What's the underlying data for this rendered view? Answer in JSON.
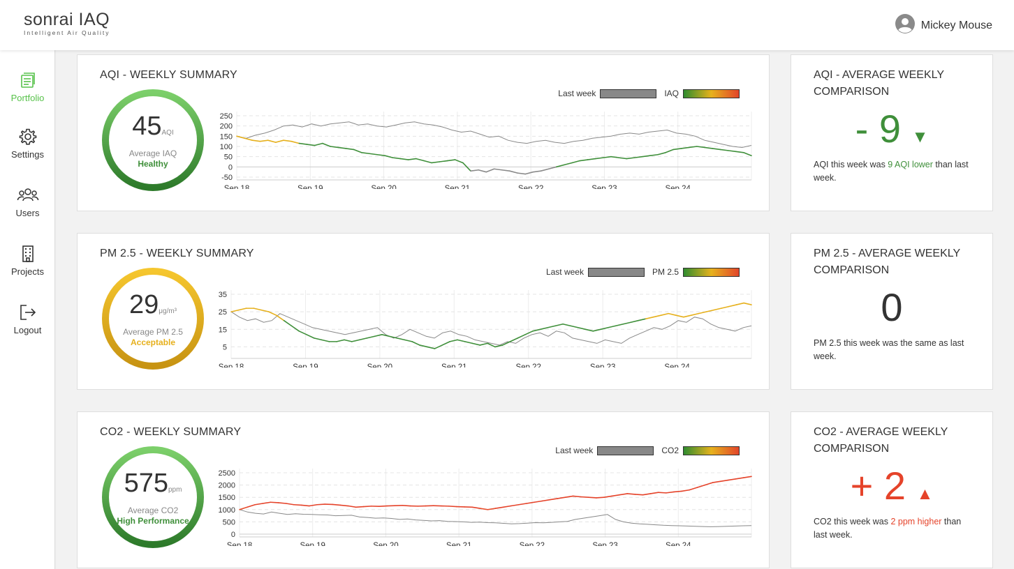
{
  "app": {
    "logo_name": "sonrai",
    "logo_product": "IAQ",
    "logo_tagline": "Intelligent Air Quality"
  },
  "user": {
    "name": "Mickey Mouse",
    "icon": "user-avatar-icon"
  },
  "sidebar": {
    "items": [
      {
        "label": "Portfolio",
        "icon": "portfolio-icon",
        "active": true
      },
      {
        "label": "Settings",
        "icon": "gear-icon"
      },
      {
        "label": "Users",
        "icon": "users-icon"
      },
      {
        "label": "Projects",
        "icon": "building-icon"
      },
      {
        "label": "Logout",
        "icon": "logout-icon"
      }
    ]
  },
  "colors": {
    "green": "#3f8f3a",
    "yellow": "#e6b01c",
    "red": "#e5432a",
    "accent": "#57c24a",
    "grey": "#888888"
  },
  "aqi": {
    "title": "AQI - WEEKLY SUMMARY",
    "gauge": {
      "value": "45",
      "unit": "AQI",
      "label": "Average IAQ",
      "status": "Healthy"
    },
    "legend": {
      "last_week": "Last week",
      "current": "IAQ"
    },
    "comparison": {
      "title": "AQI - AVERAGE WEEKLY COMPARISON",
      "value": "- 9",
      "arrow": "▼",
      "desc_pre": "AQI this week was ",
      "desc_hl": "9 AQI lower",
      "desc_post": " than last week."
    }
  },
  "pm25": {
    "title": "PM 2.5 - WEEKLY SUMMARY",
    "gauge": {
      "value": "29",
      "unit": "μg/m³",
      "label": "Average PM 2.5",
      "status": "Acceptable"
    },
    "legend": {
      "last_week": "Last week",
      "current": "PM 2.5"
    },
    "comparison": {
      "title": "PM 2.5 - AVERAGE WEEKLY COMPARISON",
      "value": "0",
      "desc_pre": "PM 2.5 this week was the same as last week.",
      "desc_hl": "",
      "desc_post": ""
    }
  },
  "co2": {
    "title": "CO2 - WEEKLY SUMMARY",
    "gauge": {
      "value": "575",
      "unit": "ppm",
      "label": "Average CO2",
      "status": "High Performance"
    },
    "legend": {
      "last_week": "Last week",
      "current": "CO2"
    },
    "comparison": {
      "title": "CO2 - AVERAGE WEEKLY COMPARISON",
      "value": "+ 2",
      "arrow": "▲",
      "desc_pre": "CO2 this week was ",
      "desc_hl": "2 ppm higher",
      "desc_post": " than last week."
    }
  },
  "chart_data": [
    {
      "type": "line",
      "ylim": [
        -50,
        250
      ],
      "yticks": [
        250,
        200,
        150,
        100,
        50,
        0,
        -50
      ],
      "x_labels": [
        "Sep 18",
        "Sep 19",
        "Sep 20",
        "Sep 21",
        "Sep 22",
        "Sep 23",
        "Sep 24"
      ],
      "series": [
        {
          "name": "Last week",
          "color": "#888888",
          "values": [
            150,
            140,
            155,
            165,
            180,
            200,
            205,
            195,
            210,
            200,
            210,
            215,
            220,
            205,
            210,
            200,
            195,
            205,
            215,
            220,
            210,
            205,
            195,
            180,
            170,
            175,
            160,
            145,
            150,
            130,
            120,
            115,
            125,
            130,
            120,
            115,
            125,
            130,
            140,
            145,
            150,
            160,
            165,
            160,
            170,
            175,
            180,
            165,
            160,
            150,
            130,
            120,
            110,
            100,
            95,
            105
          ]
        },
        {
          "name": "IAQ",
          "colored": true,
          "values": [
            150,
            140,
            130,
            125,
            130,
            120,
            130,
            125,
            115,
            110,
            105,
            115,
            100,
            95,
            90,
            85,
            70,
            65,
            60,
            55,
            45,
            40,
            35,
            40,
            30,
            20,
            25,
            30,
            35,
            20,
            -20,
            -15,
            -25,
            -10,
            -15,
            -20,
            -30,
            -35,
            -25,
            -20,
            -10,
            0,
            10,
            20,
            30,
            35,
            40,
            45,
            50,
            45,
            40,
            45,
            50,
            55,
            60,
            70,
            85,
            90,
            95,
            100,
            95,
            90,
            85,
            80,
            75,
            70,
            55
          ]
        }
      ]
    },
    {
      "type": "line",
      "ylim": [
        0,
        35
      ],
      "yticks": [
        35,
        25,
        15,
        5
      ],
      "x_labels": [
        "Sep 18",
        "Sep 19",
        "Sep 20",
        "Sep 21",
        "Sep 22",
        "Sep 23",
        "Sep 24"
      ],
      "series": [
        {
          "name": "Last week",
          "color": "#888888",
          "values": [
            25,
            22,
            20,
            21,
            19,
            20,
            24,
            22,
            20,
            18,
            16,
            15,
            14,
            13,
            12,
            13,
            14,
            15,
            16,
            12,
            10,
            12,
            15,
            13,
            11,
            10,
            13,
            14,
            12,
            11,
            9,
            8,
            7,
            6,
            8,
            7,
            10,
            12,
            13,
            11,
            14,
            13,
            10,
            9,
            8,
            7,
            9,
            8,
            7,
            10,
            12,
            14,
            16,
            15,
            17,
            20,
            19,
            22,
            21,
            18,
            16,
            15,
            14,
            16,
            17
          ]
        },
        {
          "name": "PM 2.5",
          "colored": true,
          "values": [
            25,
            26,
            27,
            27,
            26,
            25,
            23,
            20,
            17,
            14,
            12,
            10,
            9,
            8,
            8,
            9,
            8,
            9,
            10,
            11,
            12,
            11,
            10,
            9,
            8,
            6,
            5,
            4,
            6,
            8,
            9,
            8,
            7,
            6,
            7,
            5,
            6,
            8,
            10,
            12,
            14,
            15,
            16,
            17,
            18,
            17,
            16,
            15,
            14,
            15,
            16,
            17,
            18,
            19,
            20,
            21,
            22,
            23,
            24,
            23,
            22,
            23,
            24,
            25,
            26,
            27,
            28,
            29,
            30,
            29
          ]
        }
      ]
    },
    {
      "type": "line",
      "ylim": [
        0,
        2500
      ],
      "yticks": [
        2500,
        2000,
        1500,
        1000,
        500,
        0
      ],
      "x_labels": [
        "Sep 18",
        "Sep 19",
        "Sep 20",
        "Sep 21",
        "Sep 22",
        "Sep 23",
        "Sep 24"
      ],
      "series": [
        {
          "name": "Last week",
          "color": "#888888",
          "values": [
            1000,
            900,
            850,
            820,
            900,
            850,
            800,
            830,
            810,
            800,
            790,
            780,
            750,
            760,
            770,
            700,
            680,
            650,
            660,
            640,
            600,
            620,
            580,
            560,
            540,
            550,
            520,
            510,
            500,
            480,
            490,
            470,
            460,
            440,
            420,
            430,
            450,
            470,
            460,
            480,
            500,
            520,
            600,
            650,
            700,
            750,
            800,
            600,
            500,
            450,
            420,
            400,
            380,
            360,
            350,
            340,
            330,
            320,
            310,
            300,
            310,
            320,
            330,
            340,
            350
          ]
        },
        {
          "name": "CO2",
          "colored": true,
          "values": [
            1000,
            1100,
            1200,
            1250,
            1300,
            1280,
            1250,
            1200,
            1180,
            1150,
            1200,
            1220,
            1210,
            1180,
            1150,
            1100,
            1120,
            1140,
            1130,
            1150,
            1160,
            1170,
            1150,
            1140,
            1150,
            1160,
            1150,
            1140,
            1120,
            1110,
            1100,
            1050,
            1000,
            1050,
            1100,
            1150,
            1200,
            1250,
            1300,
            1350,
            1400,
            1450,
            1500,
            1550,
            1520,
            1500,
            1480,
            1500,
            1550,
            1600,
            1650,
            1620,
            1600,
            1650,
            1700,
            1680,
            1720,
            1750,
            1800,
            1900,
            2000,
            2100,
            2150,
            2200,
            2250,
            2300,
            2350
          ]
        }
      ]
    }
  ]
}
